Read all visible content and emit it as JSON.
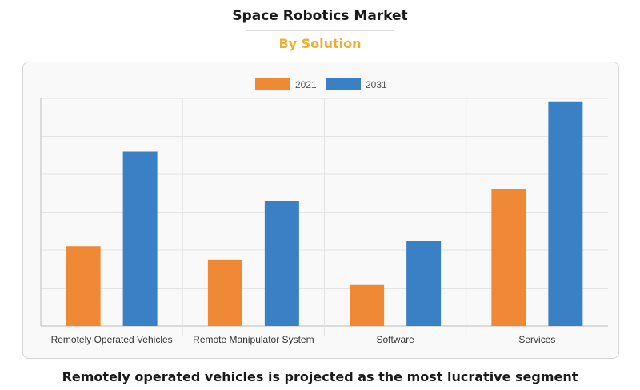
{
  "header": {
    "title": "Space Robotics Market",
    "subtitle": "By Solution"
  },
  "caption": "Remotely operated vehicles is projected as the most lucrative segment",
  "colors": {
    "series_2021": "#ef8936",
    "series_2031": "#3a80c4",
    "subtitle": "#f0ad2e"
  },
  "chart_data": {
    "type": "bar",
    "title": "Space Robotics Market",
    "subtitle": "By Solution",
    "categories": [
      "Remotely Operated Vehicles",
      "Remote Manipulator System",
      "Software",
      "Services"
    ],
    "series": [
      {
        "name": "2021",
        "color": "#ef8936",
        "values": [
          2.1,
          1.75,
          1.1,
          3.6
        ]
      },
      {
        "name": "2031",
        "color": "#3a80c4",
        "values": [
          4.6,
          3.3,
          2.25,
          5.9
        ]
      }
    ],
    "xlabel": "",
    "ylabel": "",
    "ylim": [
      0,
      6
    ],
    "grid": true,
    "legend": "top-center"
  }
}
